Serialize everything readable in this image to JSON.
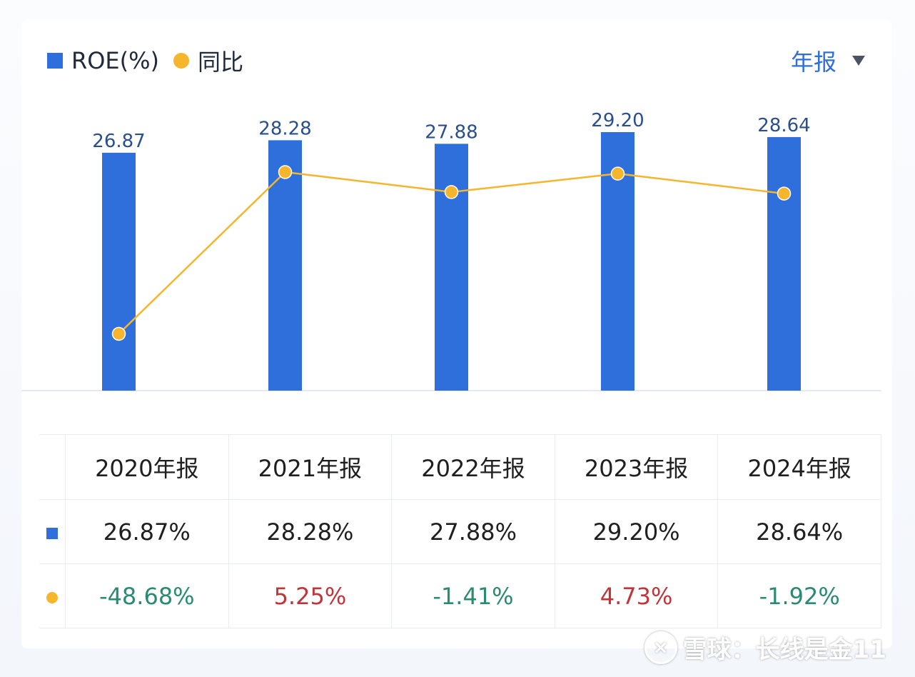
{
  "legend": {
    "roe_label": "ROE(%)",
    "yoy_label": "同比"
  },
  "period_select": {
    "value": "年报",
    "icon": "caret-down-icon"
  },
  "colors": {
    "bar": "#2e6fdc",
    "line": "#f5b52d",
    "positive": "#c1343a",
    "negative": "#2a8a72"
  },
  "chart_data": {
    "type": "bar",
    "categories": [
      "2020年报",
      "2021年报",
      "2022年报",
      "2023年报",
      "2024年报"
    ],
    "series": [
      {
        "name": "ROE(%)",
        "type": "bar",
        "values": [
          26.87,
          28.28,
          27.88,
          29.2,
          28.64
        ]
      },
      {
        "name": "同比",
        "type": "line",
        "values": [
          -48.68,
          5.25,
          -1.41,
          4.73,
          -1.92
        ]
      }
    ],
    "bar_labels": [
      "26.87",
      "28.28",
      "27.88",
      "29.20",
      "28.64"
    ],
    "legend_position": "top-left",
    "grid": false
  },
  "table": {
    "headers": [
      "2020年报",
      "2021年报",
      "2022年报",
      "2023年报",
      "2024年报"
    ],
    "roe_row": [
      "26.87%",
      "28.28%",
      "27.88%",
      "29.20%",
      "28.64%"
    ],
    "yoy_row": [
      "-48.68%",
      "5.25%",
      "-1.41%",
      "4.73%",
      "-1.92%"
    ]
  },
  "watermark": {
    "logo": "×",
    "text": "雪球：长线是金11"
  }
}
